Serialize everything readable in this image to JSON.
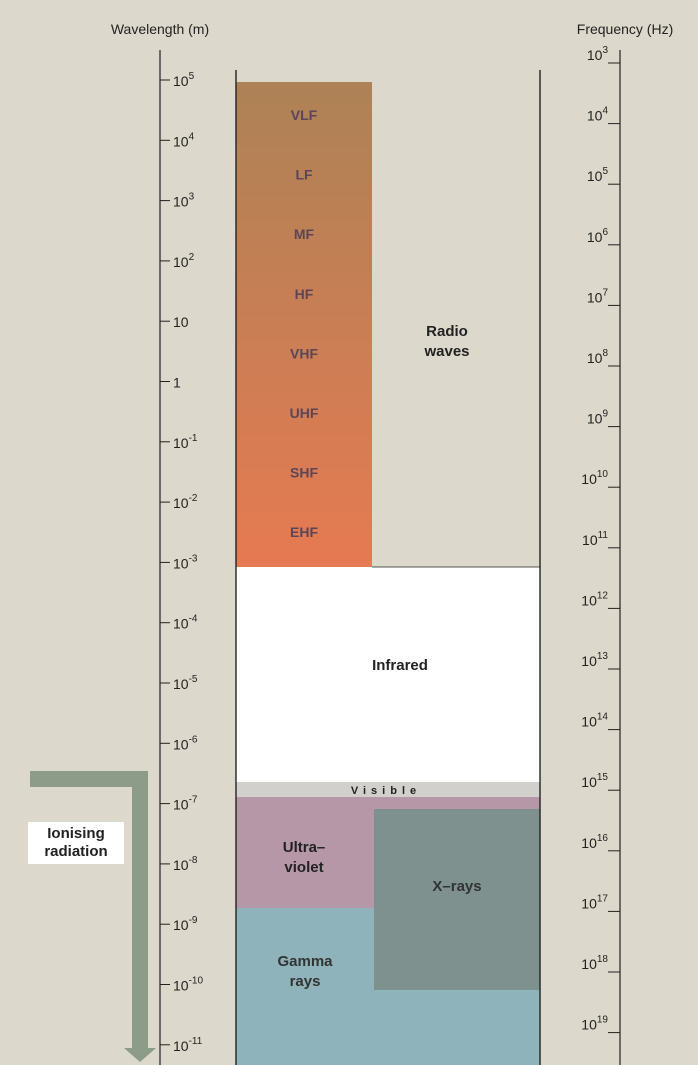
{
  "header": {
    "wavelength_label": "Wavelength (m)",
    "frequency_label": "Frequency (Hz)"
  },
  "wavelength_ticks": [
    {
      "base": "10",
      "exp": "5"
    },
    {
      "base": "10",
      "exp": "4"
    },
    {
      "base": "10",
      "exp": "3"
    },
    {
      "base": "10",
      "exp": "2"
    },
    {
      "base": "10"
    },
    {
      "base": "1"
    },
    {
      "base": "10",
      "exp": "-1"
    },
    {
      "base": "10",
      "exp": "-2"
    },
    {
      "base": "10",
      "exp": "-3"
    },
    {
      "base": "10",
      "exp": "-4"
    },
    {
      "base": "10",
      "exp": "-5"
    },
    {
      "base": "10",
      "exp": "-6"
    },
    {
      "base": "10",
      "exp": "-7"
    },
    {
      "base": "10",
      "exp": "-8"
    },
    {
      "base": "10",
      "exp": "-9"
    },
    {
      "base": "10",
      "exp": "-10"
    },
    {
      "base": "10",
      "exp": "-11"
    }
  ],
  "frequency_ticks": [
    {
      "base": "10",
      "exp": "3"
    },
    {
      "base": "10",
      "exp": "4"
    },
    {
      "base": "10",
      "exp": "5"
    },
    {
      "base": "10",
      "exp": "6"
    },
    {
      "base": "10",
      "exp": "7"
    },
    {
      "base": "10",
      "exp": "8"
    },
    {
      "base": "10",
      "exp": "9"
    },
    {
      "base": "10",
      "exp": "10"
    },
    {
      "base": "10",
      "exp": "11"
    },
    {
      "base": "10",
      "exp": "12"
    },
    {
      "base": "10",
      "exp": "13"
    },
    {
      "base": "10",
      "exp": "14"
    },
    {
      "base": "10",
      "exp": "15"
    },
    {
      "base": "10",
      "exp": "16"
    },
    {
      "base": "10",
      "exp": "17"
    },
    {
      "base": "10",
      "exp": "18"
    },
    {
      "base": "10",
      "exp": "19"
    }
  ],
  "radio_bands": [
    "VLF",
    "LF",
    "MF",
    "HF",
    "VHF",
    "UHF",
    "SHF",
    "EHF"
  ],
  "regions": {
    "radio": [
      "Radio",
      "waves"
    ],
    "infrared": "Infrared",
    "visible": "Visible",
    "ultraviolet": [
      "Ultra–",
      "violet"
    ],
    "xrays": "X–rays",
    "gamma": [
      "Gamma",
      "rays"
    ],
    "ionising": [
      "Ionising",
      "radiation"
    ]
  }
}
